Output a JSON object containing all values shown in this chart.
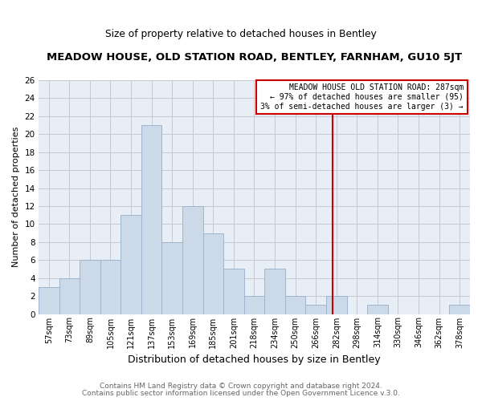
{
  "title": "MEADOW HOUSE, OLD STATION ROAD, BENTLEY, FARNHAM, GU10 5JT",
  "subtitle": "Size of property relative to detached houses in Bentley",
  "xlabel": "Distribution of detached houses by size in Bentley",
  "ylabel": "Number of detached properties",
  "bar_color": "#ccd9e8",
  "bar_edge_color": "#a0b4cc",
  "categories": [
    "57sqm",
    "73sqm",
    "89sqm",
    "105sqm",
    "121sqm",
    "137sqm",
    "153sqm",
    "169sqm",
    "185sqm",
    "201sqm",
    "218sqm",
    "234sqm",
    "250sqm",
    "266sqm",
    "282sqm",
    "298sqm",
    "314sqm",
    "330sqm",
    "346sqm",
    "362sqm",
    "378sqm"
  ],
  "values": [
    3,
    4,
    6,
    6,
    11,
    21,
    8,
    12,
    9,
    5,
    2,
    5,
    2,
    1,
    2,
    0,
    1,
    0,
    0,
    0,
    1
  ],
  "vline_color": "#cc0000",
  "annotation_title": "MEADOW HOUSE OLD STATION ROAD: 287sqm",
  "annotation_line1": "← 97% of detached houses are smaller (95)",
  "annotation_line2": "3% of semi-detached houses are larger (3) →",
  "annotation_box_edge": "#cc0000",
  "ylim": [
    0,
    26
  ],
  "yticks": [
    0,
    2,
    4,
    6,
    8,
    10,
    12,
    14,
    16,
    18,
    20,
    22,
    24,
    26
  ],
  "footer1": "Contains HM Land Registry data © Crown copyright and database right 2024.",
  "footer2": "Contains public sector information licensed under the Open Government Licence v.3.0.",
  "background_color": "#ffffff",
  "plot_bg_color": "#e8eef5",
  "grid_color": "#c8c8d0"
}
